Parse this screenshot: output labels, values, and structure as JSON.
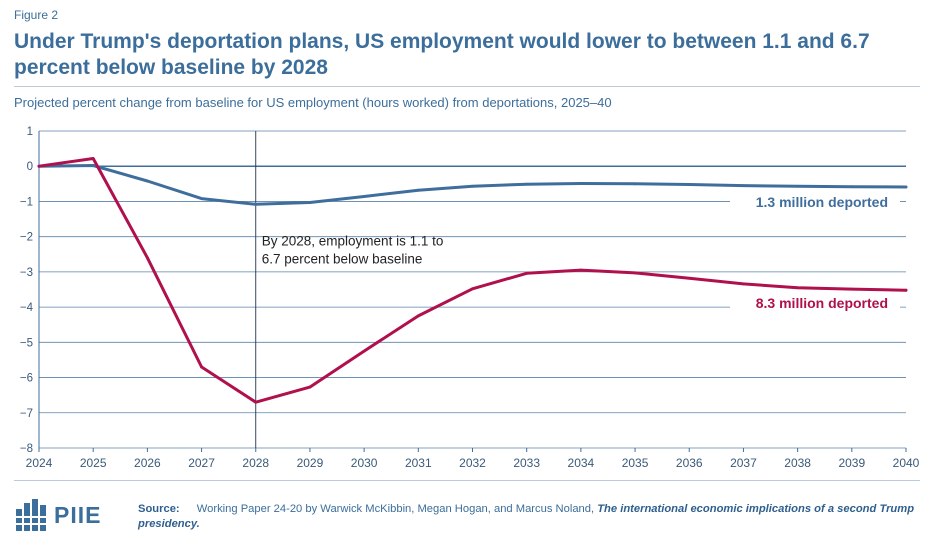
{
  "figure_label": "Figure 2",
  "title": "Under Trump's deportation plans, US employment would lower to between 1.1 and 6.7 percent below baseline by 2028",
  "subtitle": "Projected percent change from baseline for US employment (hours worked) from deportations, 2025–40",
  "colors": {
    "accent": "#3c6e9b",
    "series_low": "#3f6e9d",
    "series_high": "#b0104c",
    "grid": "#3f6e9d",
    "axis_text": "#3a5a78"
  },
  "chart_data": {
    "type": "line",
    "title": "Projected percent change from baseline for US employment (hours worked) from deportations, 2025–40",
    "xlabel": "",
    "ylabel": "",
    "x": [
      "2024",
      "2025",
      "2026",
      "2027",
      "2028",
      "2029",
      "2030",
      "2031",
      "2032",
      "2033",
      "2034",
      "2035",
      "2036",
      "2037",
      "2038",
      "2039",
      "2040"
    ],
    "ylim": [
      -8,
      1
    ],
    "yticks": [
      1,
      0,
      -1,
      -2,
      -3,
      -4,
      -5,
      -6,
      -7,
      -8
    ],
    "ytick_labels": [
      "1",
      "0",
      "−1",
      "−2",
      "−3",
      "−4",
      "−5",
      "−6",
      "−7",
      "−8"
    ],
    "grid": true,
    "series": [
      {
        "name": "1.3 million deported",
        "color": "#3f6e9d",
        "values": [
          0,
          0.02,
          -0.42,
          -0.92,
          -1.08,
          -1.03,
          -0.86,
          -0.68,
          -0.57,
          -0.51,
          -0.49,
          -0.5,
          -0.52,
          -0.55,
          -0.57,
          -0.58,
          -0.59
        ]
      },
      {
        "name": "8.3 million deported",
        "color": "#b0104c",
        "values": [
          0,
          0.22,
          -2.6,
          -5.7,
          -6.7,
          -6.27,
          -5.25,
          -4.25,
          -3.48,
          -3.04,
          -2.95,
          -3.03,
          -3.18,
          -3.34,
          -3.45,
          -3.49,
          -3.52
        ]
      }
    ],
    "reference_year": "2028",
    "annotation_lines": [
      "By 2028, employment is 1.1 to",
      "6.7 percent below baseline"
    ]
  },
  "footer": {
    "logo_text": "PIIE",
    "source_label": "Source:",
    "source_text": "Working Paper 24-20 by Warwick McKibbin, Megan Hogan, and Marcus Noland,",
    "source_title": "The international economic implications of a second Trump presidency."
  }
}
